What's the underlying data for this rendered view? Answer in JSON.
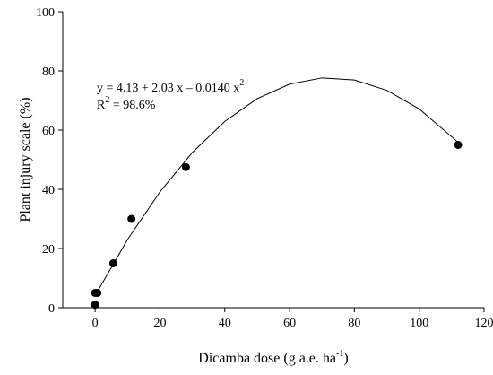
{
  "chart_data": {
    "type": "scatter",
    "xlabel": {
      "text": "Dicamba dose (g a.e. ha",
      "sup": "-1",
      "end": ")"
    },
    "ylabel": "Plant injury scale (%)",
    "equation": {
      "text": "y = 4.13 + 2.03 x – 0.0140 x",
      "sup": "2"
    },
    "r2": {
      "text": "R",
      "sup": "2",
      "end": " = 98.6%"
    },
    "xlim": [
      -10,
      120
    ],
    "xticks": [
      0,
      20,
      40,
      60,
      80,
      100,
      120
    ],
    "ylim": [
      0,
      100
    ],
    "yticks": [
      0,
      20,
      40,
      60,
      80,
      100
    ],
    "grid": false,
    "series": [
      {
        "name": "observed",
        "color": "#000000",
        "x": [
          0,
          0,
          0.7,
          5.6,
          11.2,
          28,
          112
        ],
        "values": [
          1,
          5,
          5,
          15,
          30,
          47.5,
          55
        ]
      },
      {
        "name": "fit",
        "color": "#000000",
        "x": [
          0,
          10,
          20,
          30,
          40,
          50,
          60,
          70,
          80,
          90,
          100,
          112
        ],
        "values": [
          4.13,
          23.03,
          39.13,
          52.43,
          62.93,
          70.63,
          75.53,
          77.63,
          76.93,
          73.43,
          67.13,
          55.87
        ]
      }
    ]
  }
}
